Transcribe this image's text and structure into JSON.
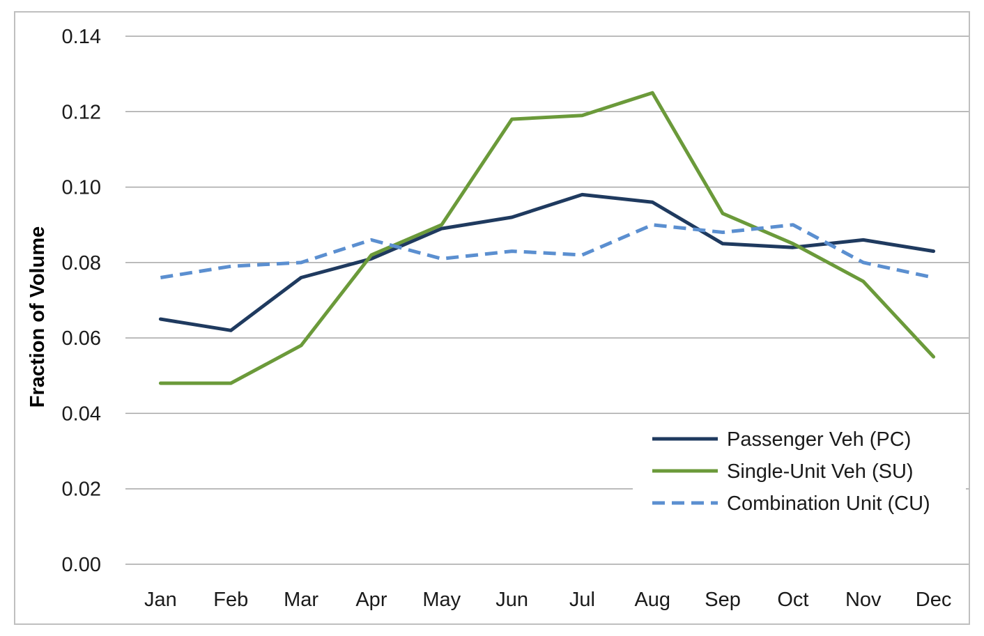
{
  "chart_data": {
    "type": "line",
    "title": "",
    "xlabel": "",
    "ylabel": "Fraction of Volume",
    "categories": [
      "Jan",
      "Feb",
      "Mar",
      "Apr",
      "May",
      "Jun",
      "Jul",
      "Aug",
      "Sep",
      "Oct",
      "Nov",
      "Dec"
    ],
    "ylim": [
      0,
      0.14
    ],
    "yticks": [
      "0.00",
      "0.02",
      "0.04",
      "0.06",
      "0.08",
      "0.10",
      "0.12",
      "0.14"
    ],
    "grid": "horizontal",
    "legend_position": "bottom-right",
    "series": [
      {
        "name": "Passenger Veh (PC)",
        "color": "#1f3a5f",
        "dash": "solid",
        "values": [
          0.065,
          0.062,
          0.076,
          0.081,
          0.089,
          0.092,
          0.098,
          0.096,
          0.085,
          0.084,
          0.086,
          0.083
        ]
      },
      {
        "name": "Single-Unit Veh (SU)",
        "color": "#6b9a3a",
        "dash": "solid",
        "values": [
          0.048,
          0.048,
          0.058,
          0.082,
          0.09,
          0.118,
          0.119,
          0.125,
          0.093,
          0.085,
          0.075,
          0.055
        ]
      },
      {
        "name": "Combination Unit (CU)",
        "color": "#5b8fd0",
        "dash": "dashed",
        "values": [
          0.076,
          0.079,
          0.08,
          0.086,
          0.081,
          0.083,
          0.082,
          0.09,
          0.088,
          0.09,
          0.08,
          0.076
        ]
      }
    ]
  }
}
